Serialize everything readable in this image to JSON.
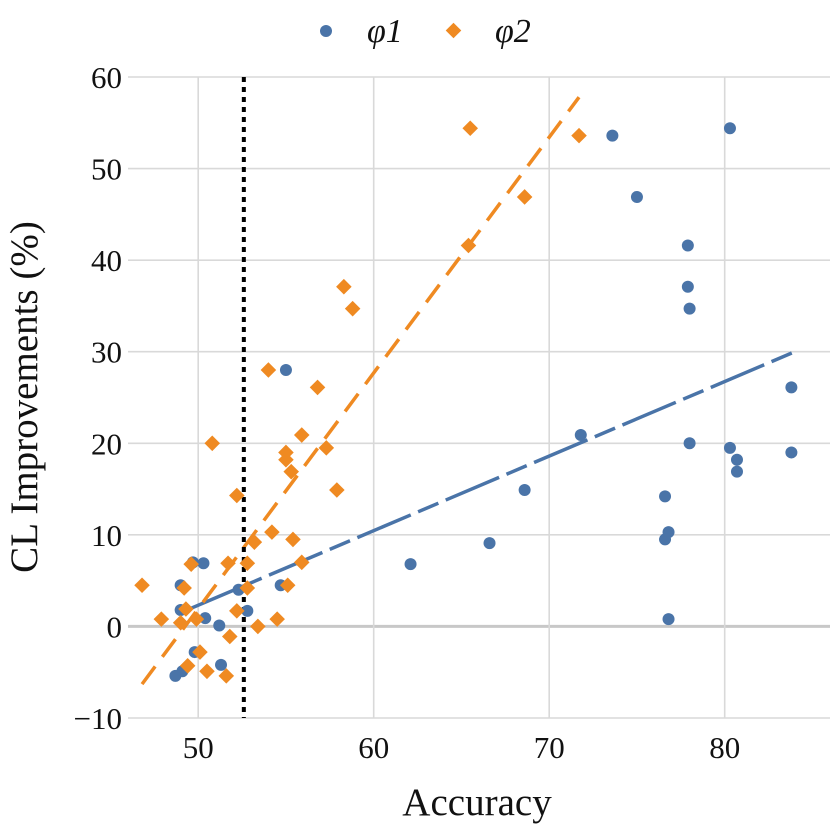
{
  "chart_data": {
    "type": "scatter",
    "title": "",
    "xlabel": "Accuracy",
    "ylabel": "CL Improvements (%)",
    "xlim": [
      46,
      86
    ],
    "ylim": [
      -10,
      60
    ],
    "xticks": [
      50,
      60,
      70,
      80
    ],
    "yticks": [
      -10,
      0,
      10,
      20,
      30,
      40,
      50,
      60
    ],
    "xtick_labels": [
      "50",
      "60",
      "70",
      "80"
    ],
    "ytick_labels": [
      "−10",
      "0",
      "10",
      "20",
      "30",
      "40",
      "50",
      "60"
    ],
    "grid": true,
    "legend_position": "top-center",
    "vline": {
      "x": 52.6,
      "style": "dotted",
      "color": "#000000"
    },
    "series": [
      {
        "name": "φ1",
        "color": "#4a74a8",
        "marker": "circle",
        "points": [
          [
            48.7,
            -5.4
          ],
          [
            49.1,
            -4.9
          ],
          [
            49.8,
            -2.8
          ],
          [
            51.3,
            -4.2
          ],
          [
            49.0,
            4.5
          ],
          [
            49.0,
            1.8
          ],
          [
            49.7,
            7.0
          ],
          [
            50.3,
            6.9
          ],
          [
            50.4,
            0.9
          ],
          [
            51.2,
            0.1
          ],
          [
            52.3,
            4.0
          ],
          [
            52.8,
            1.7
          ],
          [
            54.7,
            4.5
          ],
          [
            55.0,
            28.0
          ],
          [
            62.1,
            6.8
          ],
          [
            66.6,
            9.1
          ],
          [
            68.6,
            14.9
          ],
          [
            71.8,
            20.9
          ],
          [
            73.6,
            53.6
          ],
          [
            75.0,
            46.9
          ],
          [
            76.6,
            14.2
          ],
          [
            76.6,
            9.5
          ],
          [
            76.8,
            10.3
          ],
          [
            76.8,
            0.8
          ],
          [
            77.9,
            41.6
          ],
          [
            77.9,
            37.1
          ],
          [
            78.0,
            34.7
          ],
          [
            78.0,
            20.0
          ],
          [
            80.3,
            54.4
          ],
          [
            80.3,
            19.5
          ],
          [
            80.7,
            18.2
          ],
          [
            80.7,
            16.9
          ],
          [
            83.8,
            26.1
          ],
          [
            83.8,
            19.0
          ]
        ],
        "trend": [
          [
            49.0,
            1.5
          ],
          [
            84.0,
            30.0
          ]
        ]
      },
      {
        "name": "φ2",
        "color": "#ef8a22",
        "marker": "diamond",
        "points": [
          [
            46.8,
            4.5
          ],
          [
            47.9,
            0.8
          ],
          [
            49.0,
            0.4
          ],
          [
            49.2,
            4.2
          ],
          [
            49.3,
            1.9
          ],
          [
            49.4,
            -4.3
          ],
          [
            49.6,
            6.8
          ],
          [
            49.9,
            0.8
          ],
          [
            50.1,
            -2.8
          ],
          [
            50.5,
            -4.9
          ],
          [
            50.8,
            20.0
          ],
          [
            51.6,
            -5.4
          ],
          [
            51.7,
            6.9
          ],
          [
            51.8,
            -1.1
          ],
          [
            52.2,
            14.3
          ],
          [
            52.2,
            1.7
          ],
          [
            52.8,
            6.9
          ],
          [
            52.8,
            4.2
          ],
          [
            53.2,
            9.2
          ],
          [
            53.4,
            0.0
          ],
          [
            54.0,
            28.0
          ],
          [
            54.2,
            10.3
          ],
          [
            54.5,
            0.8
          ],
          [
            55.0,
            19.0
          ],
          [
            55.0,
            18.2
          ],
          [
            55.1,
            4.5
          ],
          [
            55.3,
            16.9
          ],
          [
            55.4,
            9.5
          ],
          [
            55.9,
            7.0
          ],
          [
            55.9,
            20.9
          ],
          [
            56.8,
            26.1
          ],
          [
            57.3,
            19.5
          ],
          [
            57.9,
            14.9
          ],
          [
            58.3,
            37.1
          ],
          [
            58.8,
            34.7
          ],
          [
            65.4,
            41.6
          ],
          [
            65.5,
            54.4
          ],
          [
            68.6,
            46.9
          ],
          [
            71.7,
            53.6
          ]
        ],
        "trend": [
          [
            46.8,
            -6.3
          ],
          [
            71.7,
            57.8
          ]
        ]
      }
    ]
  }
}
